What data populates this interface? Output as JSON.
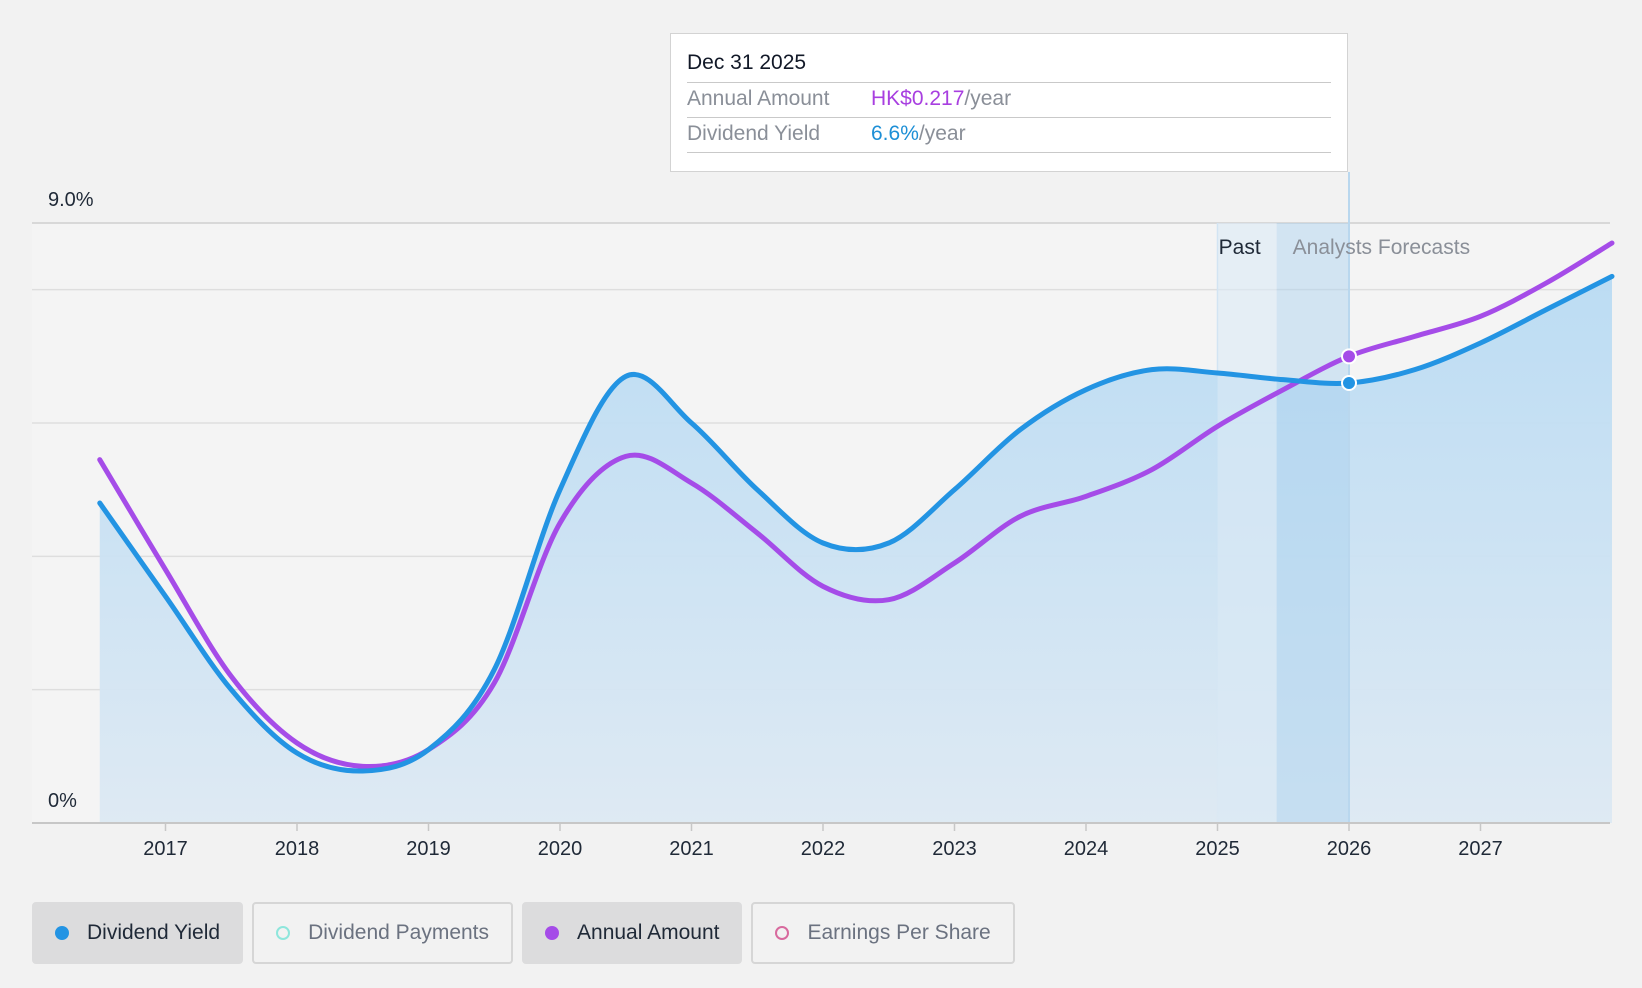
{
  "tooltip": {
    "date": "Dec 31 2025",
    "rows": [
      {
        "label": "Annual Amount",
        "value": "HK$0.217",
        "unit": "/year"
      },
      {
        "label": "Dividend Yield",
        "value": "6.6%",
        "unit": "/year"
      }
    ]
  },
  "legend": {
    "items": [
      {
        "label": "Dividend Yield",
        "active": true,
        "color": "#2394e3",
        "hollow": false
      },
      {
        "label": "Dividend Payments",
        "active": false,
        "color": "#8ee6dc",
        "hollow": true
      },
      {
        "label": "Annual Amount",
        "active": true,
        "color": "#a54ce8",
        "hollow": false
      },
      {
        "label": "Earnings Per Share",
        "active": false,
        "color": "#d86a9e",
        "hollow": true
      }
    ]
  },
  "chart_data": {
    "type": "line",
    "x_ticks": [
      "2017",
      "2018",
      "2019",
      "2020",
      "2021",
      "2022",
      "2023",
      "2024",
      "2025",
      "2026",
      "2027"
    ],
    "y_axis": {
      "top_label": "9.0%",
      "bottom_label": "0%",
      "ylim": [
        0,
        9.0
      ],
      "gridlines": [
        0,
        2,
        4,
        6,
        8,
        9
      ]
    },
    "regions": {
      "past_label": "Past",
      "forecast_label": "Analysts Forecasts"
    },
    "hover_x": 2026.0,
    "series": [
      {
        "name": "Dividend Yield",
        "color": "#2394e3",
        "fill": true,
        "points": [
          [
            2016.5,
            4.8
          ],
          [
            2017.0,
            3.4
          ],
          [
            2017.5,
            2.0
          ],
          [
            2018.0,
            1.05
          ],
          [
            2018.5,
            0.78
          ],
          [
            2019.0,
            1.1
          ],
          [
            2019.5,
            2.3
          ],
          [
            2020.0,
            5.0
          ],
          [
            2020.5,
            6.7
          ],
          [
            2021.0,
            6.0
          ],
          [
            2021.5,
            5.0
          ],
          [
            2022.0,
            4.2
          ],
          [
            2022.5,
            4.2
          ],
          [
            2023.0,
            5.0
          ],
          [
            2023.5,
            5.9
          ],
          [
            2024.0,
            6.5
          ],
          [
            2024.5,
            6.8
          ],
          [
            2025.0,
            6.75
          ],
          [
            2025.5,
            6.65
          ],
          [
            2026.0,
            6.6
          ],
          [
            2026.5,
            6.8
          ],
          [
            2027.0,
            7.2
          ],
          [
            2027.5,
            7.7
          ],
          [
            2028.0,
            8.2
          ]
        ]
      },
      {
        "name": "Annual Amount",
        "color": "#a54ce8",
        "fill": false,
        "points": [
          [
            2016.5,
            5.45
          ],
          [
            2017.0,
            3.8
          ],
          [
            2017.5,
            2.2
          ],
          [
            2018.0,
            1.2
          ],
          [
            2018.5,
            0.85
          ],
          [
            2019.0,
            1.1
          ],
          [
            2019.5,
            2.1
          ],
          [
            2020.0,
            4.5
          ],
          [
            2020.5,
            5.5
          ],
          [
            2021.0,
            5.1
          ],
          [
            2021.5,
            4.35
          ],
          [
            2022.0,
            3.55
          ],
          [
            2022.5,
            3.35
          ],
          [
            2023.0,
            3.9
          ],
          [
            2023.5,
            4.6
          ],
          [
            2024.0,
            4.9
          ],
          [
            2024.5,
            5.3
          ],
          [
            2025.0,
            5.95
          ],
          [
            2025.5,
            6.5
          ],
          [
            2026.0,
            7.0
          ],
          [
            2026.5,
            7.3
          ],
          [
            2027.0,
            7.6
          ],
          [
            2027.5,
            8.1
          ],
          [
            2028.0,
            8.7
          ]
        ]
      }
    ]
  }
}
